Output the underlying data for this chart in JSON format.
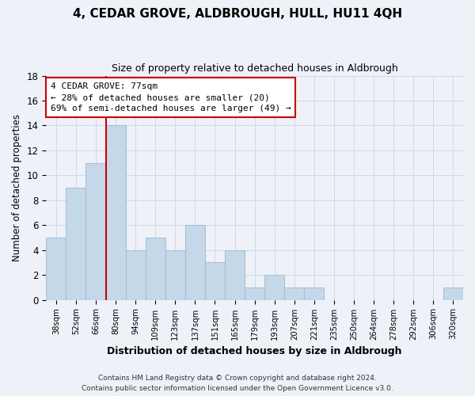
{
  "title": "4, CEDAR GROVE, ALDBROUGH, HULL, HU11 4QH",
  "subtitle": "Size of property relative to detached houses in Aldbrough",
  "xlabel": "Distribution of detached houses by size in Aldbrough",
  "ylabel": "Number of detached properties",
  "bin_labels": [
    "38sqm",
    "52sqm",
    "66sqm",
    "80sqm",
    "94sqm",
    "109sqm",
    "123sqm",
    "137sqm",
    "151sqm",
    "165sqm",
    "179sqm",
    "193sqm",
    "207sqm",
    "221sqm",
    "235sqm",
    "250sqm",
    "264sqm",
    "278sqm",
    "292sqm",
    "306sqm",
    "320sqm"
  ],
  "bar_heights": [
    5,
    9,
    11,
    14,
    4,
    5,
    4,
    6,
    3,
    4,
    1,
    2,
    1,
    1,
    0,
    0,
    0,
    0,
    0,
    0,
    1
  ],
  "bar_color": "#c5d8ea",
  "bar_edge_color": "#aabfd4",
  "grid_color": "#d0d8e8",
  "background_color": "#eef2f8",
  "vline_color": "#cc0000",
  "ylim": [
    0,
    18
  ],
  "yticks": [
    0,
    2,
    4,
    6,
    8,
    10,
    12,
    14,
    16,
    18
  ],
  "annotation_title": "4 CEDAR GROVE: 77sqm",
  "annotation_line1": "← 28% of detached houses are smaller (20)",
  "annotation_line2": "69% of semi-detached houses are larger (49) →",
  "footer_line1": "Contains HM Land Registry data © Crown copyright and database right 2024.",
  "footer_line2": "Contains public sector information licensed under the Open Government Licence v3.0.",
  "title_fontsize": 11,
  "subtitle_fontsize": 9
}
